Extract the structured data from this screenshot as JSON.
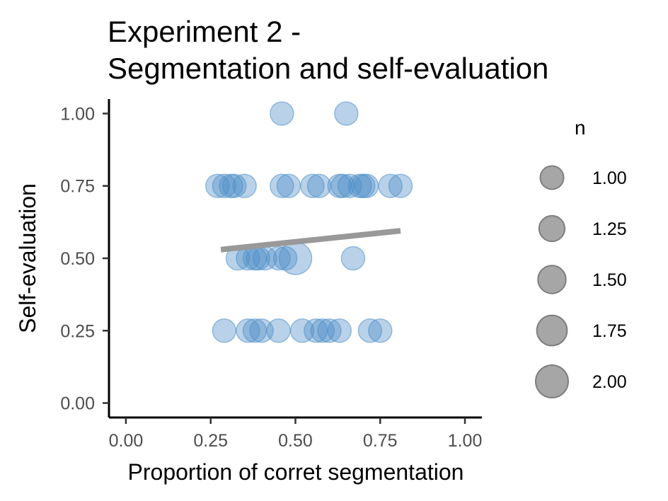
{
  "chart_data": {
    "type": "scatter",
    "title_lines": [
      "Experiment 2 -",
      "Segmentation and self-evaluation"
    ],
    "xlabel": "Proportion of corret segmentation",
    "ylabel": "Self-evaluation",
    "xlim": [
      -0.05,
      1.05
    ],
    "ylim": [
      -0.05,
      1.05
    ],
    "x_ticks": [
      "0.00",
      "0.25",
      "0.50",
      "0.75",
      "1.00"
    ],
    "y_ticks": [
      "0.00",
      "0.25",
      "0.50",
      "0.75",
      "1.00"
    ],
    "grid": false,
    "point_color": "#4f8fc8",
    "trend_color": "#999999",
    "legend": {
      "title": "n",
      "position": "right",
      "color": "#a6a6a6",
      "entries": [
        {
          "label": "1.00",
          "n": 1.0
        },
        {
          "label": "1.25",
          "n": 1.25
        },
        {
          "label": "1.50",
          "n": 1.5
        },
        {
          "label": "1.75",
          "n": 1.75
        },
        {
          "label": "2.00",
          "n": 2.0
        }
      ]
    },
    "points": [
      {
        "x": 0.46,
        "y": 1.0,
        "n": 1
      },
      {
        "x": 0.65,
        "y": 1.0,
        "n": 1
      },
      {
        "x": 0.27,
        "y": 0.75,
        "n": 1
      },
      {
        "x": 0.29,
        "y": 0.75,
        "n": 1
      },
      {
        "x": 0.31,
        "y": 0.75,
        "n": 1
      },
      {
        "x": 0.32,
        "y": 0.75,
        "n": 1
      },
      {
        "x": 0.35,
        "y": 0.75,
        "n": 1
      },
      {
        "x": 0.46,
        "y": 0.75,
        "n": 1
      },
      {
        "x": 0.48,
        "y": 0.75,
        "n": 1
      },
      {
        "x": 0.55,
        "y": 0.75,
        "n": 1
      },
      {
        "x": 0.57,
        "y": 0.75,
        "n": 1
      },
      {
        "x": 0.63,
        "y": 0.75,
        "n": 1
      },
      {
        "x": 0.64,
        "y": 0.75,
        "n": 1
      },
      {
        "x": 0.66,
        "y": 0.75,
        "n": 1
      },
      {
        "x": 0.69,
        "y": 0.75,
        "n": 1
      },
      {
        "x": 0.7,
        "y": 0.75,
        "n": 1
      },
      {
        "x": 0.71,
        "y": 0.75,
        "n": 1
      },
      {
        "x": 0.78,
        "y": 0.75,
        "n": 1
      },
      {
        "x": 0.81,
        "y": 0.75,
        "n": 1
      },
      {
        "x": 0.33,
        "y": 0.5,
        "n": 1
      },
      {
        "x": 0.36,
        "y": 0.5,
        "n": 1
      },
      {
        "x": 0.38,
        "y": 0.5,
        "n": 1
      },
      {
        "x": 0.39,
        "y": 0.5,
        "n": 1
      },
      {
        "x": 0.41,
        "y": 0.5,
        "n": 1
      },
      {
        "x": 0.45,
        "y": 0.5,
        "n": 1
      },
      {
        "x": 0.47,
        "y": 0.5,
        "n": 1
      },
      {
        "x": 0.5,
        "y": 0.5,
        "n": 2
      },
      {
        "x": 0.67,
        "y": 0.5,
        "n": 1
      },
      {
        "x": 0.29,
        "y": 0.25,
        "n": 1
      },
      {
        "x": 0.36,
        "y": 0.25,
        "n": 1
      },
      {
        "x": 0.38,
        "y": 0.25,
        "n": 1
      },
      {
        "x": 0.4,
        "y": 0.25,
        "n": 1
      },
      {
        "x": 0.45,
        "y": 0.25,
        "n": 1
      },
      {
        "x": 0.52,
        "y": 0.25,
        "n": 1
      },
      {
        "x": 0.56,
        "y": 0.25,
        "n": 1
      },
      {
        "x": 0.58,
        "y": 0.25,
        "n": 1
      },
      {
        "x": 0.6,
        "y": 0.25,
        "n": 1
      },
      {
        "x": 0.63,
        "y": 0.25,
        "n": 1
      },
      {
        "x": 0.72,
        "y": 0.25,
        "n": 1
      },
      {
        "x": 0.75,
        "y": 0.25,
        "n": 1
      }
    ],
    "trend_line": {
      "x": [
        0.28,
        0.81
      ],
      "y": [
        0.53,
        0.595
      ]
    }
  }
}
